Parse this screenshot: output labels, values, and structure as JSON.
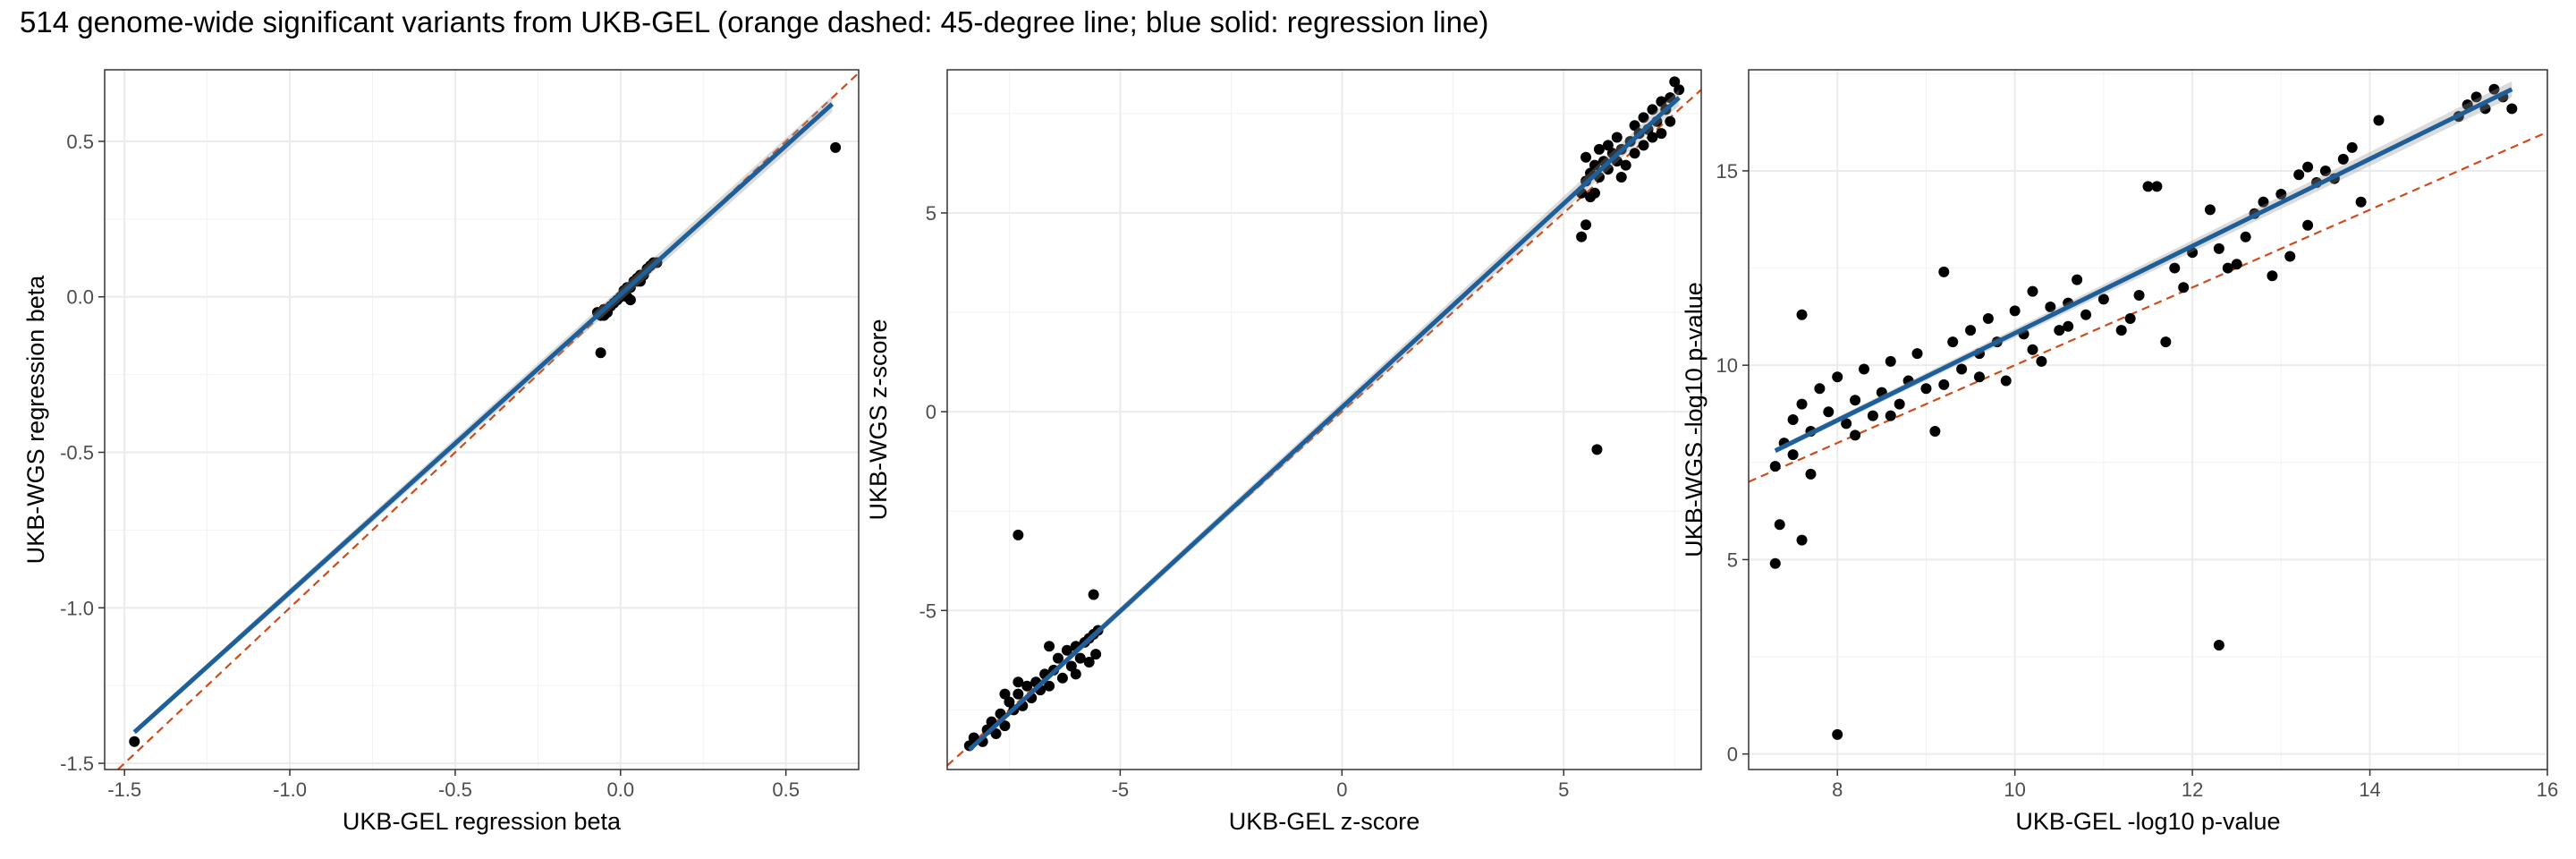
{
  "title": "514 genome-wide significant variants from UKB-GEL (orange dashed: 45-degree line; blue solid: regression line)",
  "colors": {
    "points": "#000000",
    "regression": "#1f5f99",
    "identity": "#cc4c1a",
    "grid": "#ebebeb",
    "panel_border": "#333333"
  },
  "chart_data": [
    {
      "type": "scatter",
      "xlabel": "UKB-GEL regression beta",
      "ylabel": "UKB-WGS regression beta",
      "xlim": [
        -1.56,
        0.72
      ],
      "ylim": [
        -1.52,
        0.73
      ],
      "xticks": [
        -1.5,
        -1.0,
        -0.5,
        0.0,
        0.5
      ],
      "xtick_labels": [
        "-1.5",
        "-1.0",
        "-0.5",
        "0.0",
        "0.5"
      ],
      "yticks": [
        -1.5,
        -1.0,
        -0.5,
        0.0,
        0.5
      ],
      "ytick_labels": [
        "-1.5",
        "-1.0",
        "-0.5",
        "0.0",
        "0.5"
      ],
      "grid": true,
      "identity_line": true,
      "regression_line": {
        "x": [
          -1.47,
          0.64
        ],
        "y": [
          -1.4,
          0.62
        ]
      },
      "points": [
        [
          -1.47,
          -1.43
        ],
        [
          0.65,
          0.48
        ],
        [
          -0.06,
          -0.18
        ],
        [
          -0.07,
          -0.05
        ],
        [
          -0.06,
          -0.06
        ],
        [
          -0.05,
          -0.04
        ],
        [
          -0.04,
          -0.05
        ],
        [
          -0.03,
          -0.03
        ],
        [
          -0.02,
          -0.02
        ],
        [
          -0.01,
          -0.01
        ],
        [
          0.0,
          0.0
        ],
        [
          0.01,
          0.02
        ],
        [
          0.02,
          0.03
        ],
        [
          0.03,
          0.03
        ],
        [
          0.04,
          0.05
        ],
        [
          0.05,
          0.06
        ],
        [
          0.06,
          0.07
        ],
        [
          0.07,
          0.07
        ],
        [
          0.08,
          0.09
        ],
        [
          0.09,
          0.1
        ],
        [
          0.1,
          0.11
        ],
        [
          0.11,
          0.11
        ],
        [
          0.03,
          -0.01
        ],
        [
          0.02,
          0.0
        ],
        [
          0.05,
          0.05
        ],
        [
          0.06,
          0.05
        ],
        [
          -0.05,
          -0.06
        ]
      ]
    },
    {
      "type": "scatter",
      "xlabel": "UKB-GEL z-score",
      "ylabel": "UKB-WGS z-score",
      "xlim": [
        -8.9,
        8.1
      ],
      "ylim": [
        -9.0,
        8.6
      ],
      "xticks": [
        -5,
        0,
        5
      ],
      "xtick_labels": [
        "-5",
        "0",
        "5"
      ],
      "yticks": [
        -5,
        0,
        5
      ],
      "ytick_labels": [
        "-5",
        "0",
        "5"
      ],
      "grid": true,
      "identity_line": true,
      "regression_line": {
        "x": [
          -8.4,
          7.6
        ],
        "y": [
          -8.5,
          7.9
        ]
      },
      "points": [
        [
          -7.3,
          -3.1
        ],
        [
          5.75,
          -0.95
        ],
        [
          -5.6,
          -4.6
        ],
        [
          5.4,
          4.4
        ],
        [
          5.5,
          4.7
        ],
        [
          -8.4,
          -8.4
        ],
        [
          -8.3,
          -8.2
        ],
        [
          -8.1,
          -8.3
        ],
        [
          -8.0,
          -8.0
        ],
        [
          -7.9,
          -7.8
        ],
        [
          -7.8,
          -8.1
        ],
        [
          -7.7,
          -7.6
        ],
        [
          -7.6,
          -7.9
        ],
        [
          -7.5,
          -7.3
        ],
        [
          -7.4,
          -7.5
        ],
        [
          -7.3,
          -7.1
        ],
        [
          -7.2,
          -7.4
        ],
        [
          -7.1,
          -6.9
        ],
        [
          -7.0,
          -7.2
        ],
        [
          -6.9,
          -6.8
        ],
        [
          -6.8,
          -7.0
        ],
        [
          -6.7,
          -6.6
        ],
        [
          -6.6,
          -6.9
        ],
        [
          -6.5,
          -6.5
        ],
        [
          -6.4,
          -6.2
        ],
        [
          -6.3,
          -6.7
        ],
        [
          -6.2,
          -6.0
        ],
        [
          -6.1,
          -6.4
        ],
        [
          -6.0,
          -5.9
        ],
        [
          -5.9,
          -6.2
        ],
        [
          -5.8,
          -5.8
        ],
        [
          -5.7,
          -6.3
        ],
        [
          -5.6,
          -5.6
        ],
        [
          -5.55,
          -6.1
        ],
        [
          -5.5,
          -5.5
        ],
        [
          -6.6,
          -5.9
        ],
        [
          -7.3,
          -6.8
        ],
        [
          -7.6,
          -7.1
        ],
        [
          -6.0,
          -6.6
        ],
        [
          -5.7,
          -5.7
        ],
        [
          5.4,
          5.5
        ],
        [
          5.5,
          5.8
        ],
        [
          5.6,
          6.0
        ],
        [
          5.6,
          5.4
        ],
        [
          5.7,
          6.2
        ],
        [
          5.8,
          5.9
        ],
        [
          5.9,
          6.3
        ],
        [
          6.0,
          6.1
        ],
        [
          6.1,
          6.5
        ],
        [
          6.2,
          6.3
        ],
        [
          6.3,
          6.6
        ],
        [
          6.4,
          6.2
        ],
        [
          6.5,
          6.8
        ],
        [
          6.6,
          6.5
        ],
        [
          6.7,
          7.0
        ],
        [
          6.8,
          6.7
        ],
        [
          6.9,
          7.1
        ],
        [
          7.0,
          6.9
        ],
        [
          7.1,
          7.3
        ],
        [
          7.2,
          7.0
        ],
        [
          7.3,
          7.6
        ],
        [
          7.4,
          7.9
        ],
        [
          7.5,
          8.3
        ],
        [
          7.6,
          8.1
        ],
        [
          5.5,
          6.4
        ],
        [
          5.7,
          5.5
        ],
        [
          6.0,
          6.7
        ],
        [
          6.3,
          5.9
        ],
        [
          6.6,
          7.2
        ],
        [
          7.0,
          7.6
        ],
        [
          7.2,
          7.8
        ],
        [
          7.4,
          7.3
        ],
        [
          5.8,
          6.6
        ],
        [
          6.2,
          6.9
        ],
        [
          6.8,
          7.4
        ]
      ]
    },
    {
      "type": "scatter",
      "xlabel": "UKB-GEL -log10 p-value",
      "ylabel": "UKB-WGS -log10 p-value",
      "xlim": [
        7.0,
        16.0
      ],
      "ylim": [
        -0.4,
        17.6
      ],
      "xticks": [
        8,
        10,
        12,
        14,
        16
      ],
      "xtick_labels": [
        "8",
        "10",
        "12",
        "14",
        "16"
      ],
      "yticks": [
        0,
        5,
        10,
        15
      ],
      "ytick_labels": [
        "0",
        "5",
        "10",
        "15"
      ],
      "grid": true,
      "identity_line": true,
      "regression_line": {
        "x": [
          7.3,
          15.6
        ],
        "y": [
          7.8,
          17.1
        ]
      },
      "points": [
        [
          8.0,
          0.5
        ],
        [
          12.3,
          2.8
        ],
        [
          7.3,
          4.9
        ],
        [
          7.35,
          5.9
        ],
        [
          7.6,
          5.5
        ],
        [
          9.1,
          8.3
        ],
        [
          7.6,
          11.3
        ],
        [
          7.3,
          7.4
        ],
        [
          7.4,
          8.0
        ],
        [
          7.5,
          8.6
        ],
        [
          7.6,
          9.0
        ],
        [
          7.7,
          8.3
        ],
        [
          7.8,
          9.4
        ],
        [
          7.9,
          8.8
        ],
        [
          8.0,
          9.7
        ],
        [
          8.1,
          8.5
        ],
        [
          8.2,
          9.1
        ],
        [
          8.3,
          9.9
        ],
        [
          8.4,
          8.7
        ],
        [
          8.5,
          9.3
        ],
        [
          8.6,
          10.1
        ],
        [
          8.7,
          9.0
        ],
        [
          8.8,
          9.6
        ],
        [
          8.9,
          10.3
        ],
        [
          9.0,
          9.4
        ],
        [
          9.2,
          12.4
        ],
        [
          9.3,
          10.6
        ],
        [
          9.4,
          9.9
        ],
        [
          9.5,
          10.9
        ],
        [
          9.6,
          10.3
        ],
        [
          9.7,
          11.2
        ],
        [
          9.8,
          10.6
        ],
        [
          9.9,
          9.6
        ],
        [
          10.0,
          11.4
        ],
        [
          10.1,
          10.8
        ],
        [
          10.2,
          11.9
        ],
        [
          10.3,
          10.1
        ],
        [
          10.4,
          11.5
        ],
        [
          10.5,
          10.9
        ],
        [
          10.6,
          11.6
        ],
        [
          10.7,
          12.2
        ],
        [
          10.8,
          11.3
        ],
        [
          11.0,
          11.7
        ],
        [
          11.2,
          10.9
        ],
        [
          11.4,
          11.8
        ],
        [
          11.5,
          14.6
        ],
        [
          11.6,
          14.6
        ],
        [
          11.7,
          10.6
        ],
        [
          11.8,
          12.5
        ],
        [
          12.0,
          12.9
        ],
        [
          12.2,
          14.0
        ],
        [
          12.3,
          13.0
        ],
        [
          12.5,
          12.6
        ],
        [
          12.6,
          13.3
        ],
        [
          12.7,
          13.9
        ],
        [
          12.8,
          14.2
        ],
        [
          13.0,
          14.4
        ],
        [
          13.1,
          12.8
        ],
        [
          13.2,
          14.9
        ],
        [
          13.3,
          15.1
        ],
        [
          13.4,
          14.7
        ],
        [
          13.5,
          15.0
        ],
        [
          13.6,
          14.8
        ],
        [
          13.7,
          15.3
        ],
        [
          13.8,
          15.6
        ],
        [
          13.9,
          14.2
        ],
        [
          14.1,
          16.3
        ],
        [
          15.0,
          16.4
        ],
        [
          15.1,
          16.7
        ],
        [
          15.2,
          16.9
        ],
        [
          15.3,
          16.6
        ],
        [
          15.4,
          17.1
        ],
        [
          15.5,
          16.9
        ],
        [
          15.6,
          16.6
        ],
        [
          7.5,
          7.7
        ],
        [
          7.7,
          7.2
        ],
        [
          8.2,
          8.2
        ],
        [
          8.6,
          8.7
        ],
        [
          9.2,
          9.5
        ],
        [
          9.6,
          9.7
        ],
        [
          10.2,
          10.4
        ],
        [
          10.6,
          11.0
        ],
        [
          11.3,
          11.2
        ],
        [
          11.9,
          12.0
        ],
        [
          12.4,
          12.5
        ],
        [
          12.9,
          12.3
        ],
        [
          13.3,
          13.6
        ]
      ]
    }
  ]
}
